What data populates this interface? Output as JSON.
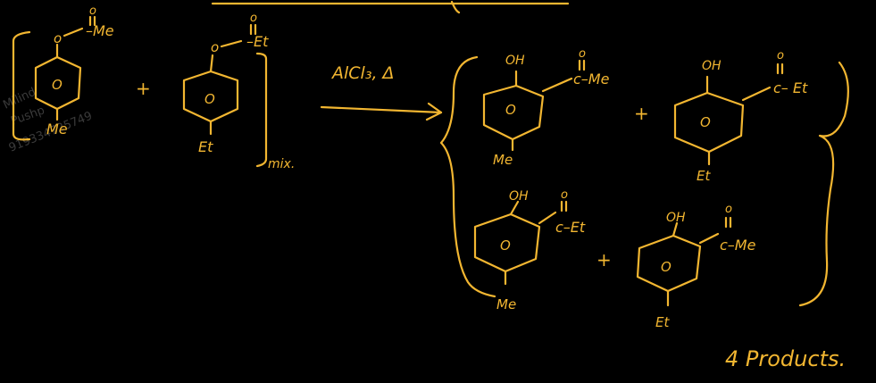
{
  "colors": {
    "ink": "#f2b631",
    "background": "#000000",
    "watermark": "#3a3a3a"
  },
  "reactants": [
    {
      "substituent_top": "O–C(=O)–Me",
      "label_top_O": "o",
      "label_acyl": "–Me",
      "label_para": "Me",
      "label_ring": "O"
    },
    {
      "substituent_top": "O–C(=O)–Et",
      "label_top_O": "o",
      "label_acyl": "–Et",
      "label_para": "Et",
      "label_ring": "O"
    }
  ],
  "labels": {
    "plus": "+",
    "mix": "mix.",
    "reagent": "AlCl₃, Δ",
    "oh": "OH",
    "carbonyl_o": "o",
    "ring": "O",
    "acyl_me": "c–Me",
    "acyl_et": "c– Et",
    "acyl_et2": "c–Et",
    "acyl_me2": "c–Me",
    "para_me": "Me",
    "para_et": "Et",
    "summary": "4 Products."
  },
  "watermark": {
    "name": "Milind",
    "name2": "Pushp",
    "phone": "919334725749"
  }
}
